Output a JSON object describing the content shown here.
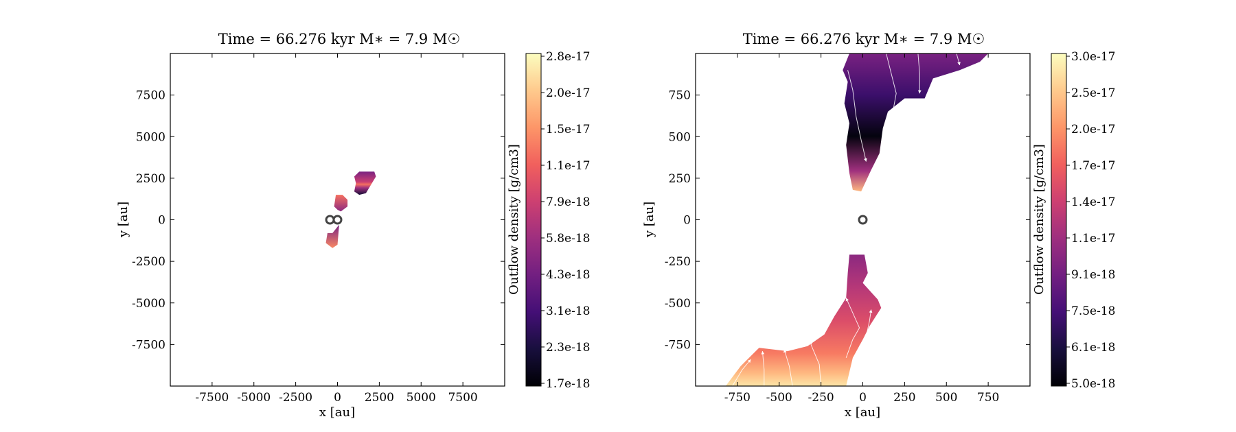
{
  "colors": {
    "colormap": [
      "#000004",
      "#180f3d",
      "#440f76",
      "#721f81",
      "#9e2f7f",
      "#cd4071",
      "#f1605d",
      "#fd9668",
      "#feca8d",
      "#fcfdbf"
    ],
    "stream": "#ffffff",
    "sink_marker": "#444444",
    "background": "#ffffff"
  },
  "chart_data": [
    {
      "type": "heatmap",
      "title": "Time = 66.276 kyr    M∗ = 7.9 M☉",
      "xlabel": "x [au]",
      "ylabel": "y [au]",
      "xlim": [
        -10000,
        10000
      ],
      "ylim": [
        -10000,
        10000
      ],
      "xticks": [
        -7500,
        -5000,
        -2500,
        0,
        2500,
        5000,
        7500
      ],
      "xticklabels": [
        "-7500",
        "-5000",
        "-2500",
        "0",
        "2500",
        "5000",
        "7500"
      ],
      "yticks": [
        7500,
        5000,
        2500,
        0,
        -2500,
        -5000,
        -7500
      ],
      "yticklabels": [
        "7500",
        "5000",
        "2500",
        "0",
        "-2500",
        "-5000",
        "-7500"
      ],
      "colorbar": {
        "label": "Outflow density [g/cm3]",
        "ticklabels": [
          "2.8e-17",
          "2.0e-17",
          "1.5e-17",
          "1.1e-17",
          "7.9e-18",
          "5.8e-18",
          "4.3e-18",
          "3.1e-18",
          "2.3e-18",
          "1.7e-18"
        ],
        "colormap": "magma",
        "scale": "log"
      },
      "sinks": [
        [
          -450,
          0
        ],
        [
          0,
          0
        ]
      ],
      "regions": [
        {
          "name": "upper-lobe",
          "vertices": [
            [
              1000,
              2600
            ],
            [
              1300,
              2900
            ],
            [
              2200,
              2900
            ],
            [
              2300,
              2600
            ],
            [
              1700,
              1600
            ],
            [
              1300,
              1500
            ],
            [
              1000,
              1700
            ],
            [
              1100,
              2200
            ]
          ],
          "fill_stops": [
            [
              0,
              0.35
            ],
            [
              0.45,
              0.55
            ],
            [
              0.55,
              0.7
            ],
            [
              0.7,
              0.45
            ],
            [
              1,
              0.1
            ]
          ]
        },
        {
          "name": "middle-lobe",
          "vertices": [
            [
              -100,
              1500
            ],
            [
              300,
              1500
            ],
            [
              600,
              1200
            ],
            [
              600,
              800
            ],
            [
              200,
              500
            ],
            [
              0,
              600
            ],
            [
              -200,
              800
            ]
          ],
          "fill_stops": [
            [
              0,
              0.7
            ],
            [
              1,
              0.4
            ]
          ]
        },
        {
          "name": "lower-lobe",
          "vertices": [
            [
              -600,
              -800
            ],
            [
              -300,
              -800
            ],
            [
              100,
              -300
            ],
            [
              0,
              -1500
            ],
            [
              -300,
              -1700
            ],
            [
              -700,
              -1400
            ]
          ],
          "fill_stops": [
            [
              0,
              0.35
            ],
            [
              1,
              0.75
            ]
          ]
        }
      ]
    },
    {
      "type": "heatmap",
      "title": "Time = 66.276 kyr    M∗ = 7.9 M☉",
      "xlabel": "x [au]",
      "ylabel": "y [au]",
      "xlim": [
        -1000,
        1000
      ],
      "ylim": [
        -1000,
        1000
      ],
      "xticks": [
        -750,
        -500,
        -250,
        0,
        250,
        500,
        750
      ],
      "xticklabels": [
        "-750",
        "-500",
        "-250",
        "0",
        "250",
        "500",
        "750"
      ],
      "yticks": [
        750,
        500,
        250,
        0,
        -250,
        -500,
        -750
      ],
      "yticklabels": [
        "750",
        "500",
        "250",
        "0",
        "-250",
        "-500",
        "-750"
      ],
      "colorbar": {
        "label": "Outflow density [g/cm3]",
        "ticklabels": [
          "3.0e-17",
          "2.5e-17",
          "2.0e-17",
          "1.7e-17",
          "1.4e-17",
          "1.1e-17",
          "9.1e-18",
          "7.5e-18",
          "6.1e-18",
          "5.0e-18"
        ],
        "colormap": "magma",
        "scale": "log"
      },
      "sinks": [
        [
          0,
          0
        ]
      ],
      "regions": [
        {
          "name": "upper-lobe",
          "vertices": [
            [
              -80,
              1000
            ],
            [
              750,
              1000
            ],
            [
              700,
              950
            ],
            [
              580,
              900
            ],
            [
              420,
              850
            ],
            [
              370,
              730
            ],
            [
              250,
              730
            ],
            [
              150,
              650
            ],
            [
              120,
              550
            ],
            [
              100,
              400
            ],
            [
              50,
              300
            ],
            [
              -10,
              170
            ],
            [
              -60,
              180
            ],
            [
              -80,
              280
            ],
            [
              -100,
              450
            ],
            [
              -80,
              580
            ],
            [
              -110,
              700
            ],
            [
              -90,
              830
            ],
            [
              -120,
              900
            ]
          ],
          "fill_stops": [
            [
              0,
              0.35
            ],
            [
              0.3,
              0.2
            ],
            [
              0.6,
              0.02
            ],
            [
              0.85,
              0.45
            ],
            [
              1,
              0.85
            ]
          ]
        },
        {
          "name": "lower-lobe",
          "vertices": [
            [
              -80,
              -210
            ],
            [
              10,
              -210
            ],
            [
              30,
              -320
            ],
            [
              0,
              -380
            ],
            [
              90,
              -480
            ],
            [
              110,
              -530
            ],
            [
              40,
              -640
            ],
            [
              0,
              -720
            ],
            [
              -60,
              -830
            ],
            [
              -100,
              -1000
            ],
            [
              -820,
              -1000
            ],
            [
              -730,
              -880
            ],
            [
              -620,
              -770
            ],
            [
              -450,
              -790
            ],
            [
              -330,
              -760
            ],
            [
              -230,
              -690
            ],
            [
              -170,
              -580
            ],
            [
              -100,
              -470
            ],
            [
              -90,
              -320
            ]
          ],
          "fill_stops": [
            [
              0,
              0.4
            ],
            [
              0.25,
              0.5
            ],
            [
              0.5,
              0.6
            ],
            [
              0.75,
              0.72
            ],
            [
              0.9,
              0.85
            ],
            [
              1,
              0.95
            ]
          ]
        }
      ],
      "streamlines": [
        [
          [
            -90,
            900
          ],
          [
            -60,
            780
          ],
          [
            -40,
            620
          ],
          [
            -10,
            480
          ],
          [
            20,
            350
          ]
        ],
        [
          [
            140,
            1000
          ],
          [
            170,
            880
          ],
          [
            200,
            760
          ],
          [
            180,
            650
          ],
          [
            150,
            560
          ]
        ],
        [
          [
            330,
            1000
          ],
          [
            340,
            880
          ],
          [
            340,
            760
          ]
        ],
        [
          [
            560,
            1000
          ],
          [
            580,
            930
          ]
        ],
        [
          [
            -780,
            -1000
          ],
          [
            -720,
            -900
          ],
          [
            -670,
            -840
          ]
        ],
        [
          [
            -590,
            -1000
          ],
          [
            -590,
            -900
          ],
          [
            -600,
            -790
          ]
        ],
        [
          [
            -420,
            -1000
          ],
          [
            -440,
            -880
          ],
          [
            -470,
            -780
          ]
        ],
        [
          [
            -250,
            -1000
          ],
          [
            -260,
            -870
          ],
          [
            -310,
            -750
          ],
          [
            -260,
            -660
          ],
          [
            -170,
            -570
          ]
        ],
        [
          [
            -100,
            -830
          ],
          [
            -60,
            -720
          ],
          [
            -20,
            -650
          ],
          [
            -60,
            -560
          ],
          [
            -100,
            -470
          ]
        ],
        [
          [
            -20,
            -760
          ],
          [
            20,
            -700
          ],
          [
            40,
            -610
          ],
          [
            50,
            -540
          ]
        ]
      ]
    }
  ]
}
